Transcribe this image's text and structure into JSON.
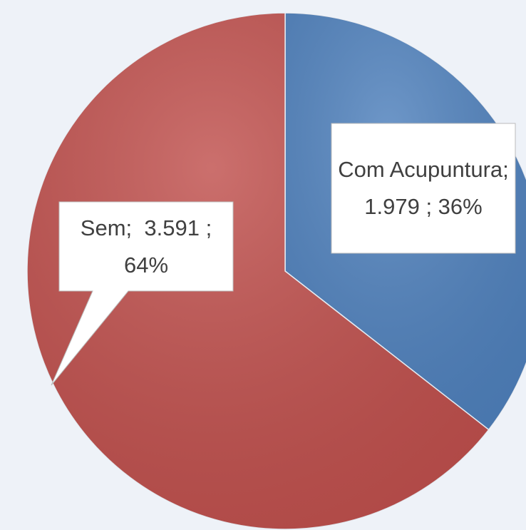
{
  "chart_data": {
    "type": "pie",
    "values": [
      1979,
      3591
    ],
    "value_labels": [
      "Com Acupuntura; 1.979 ; 36%",
      "Sem;  3.591 ; 64%"
    ],
    "colors": [
      "#4f81bd",
      "#c0504d"
    ]
  }
}
